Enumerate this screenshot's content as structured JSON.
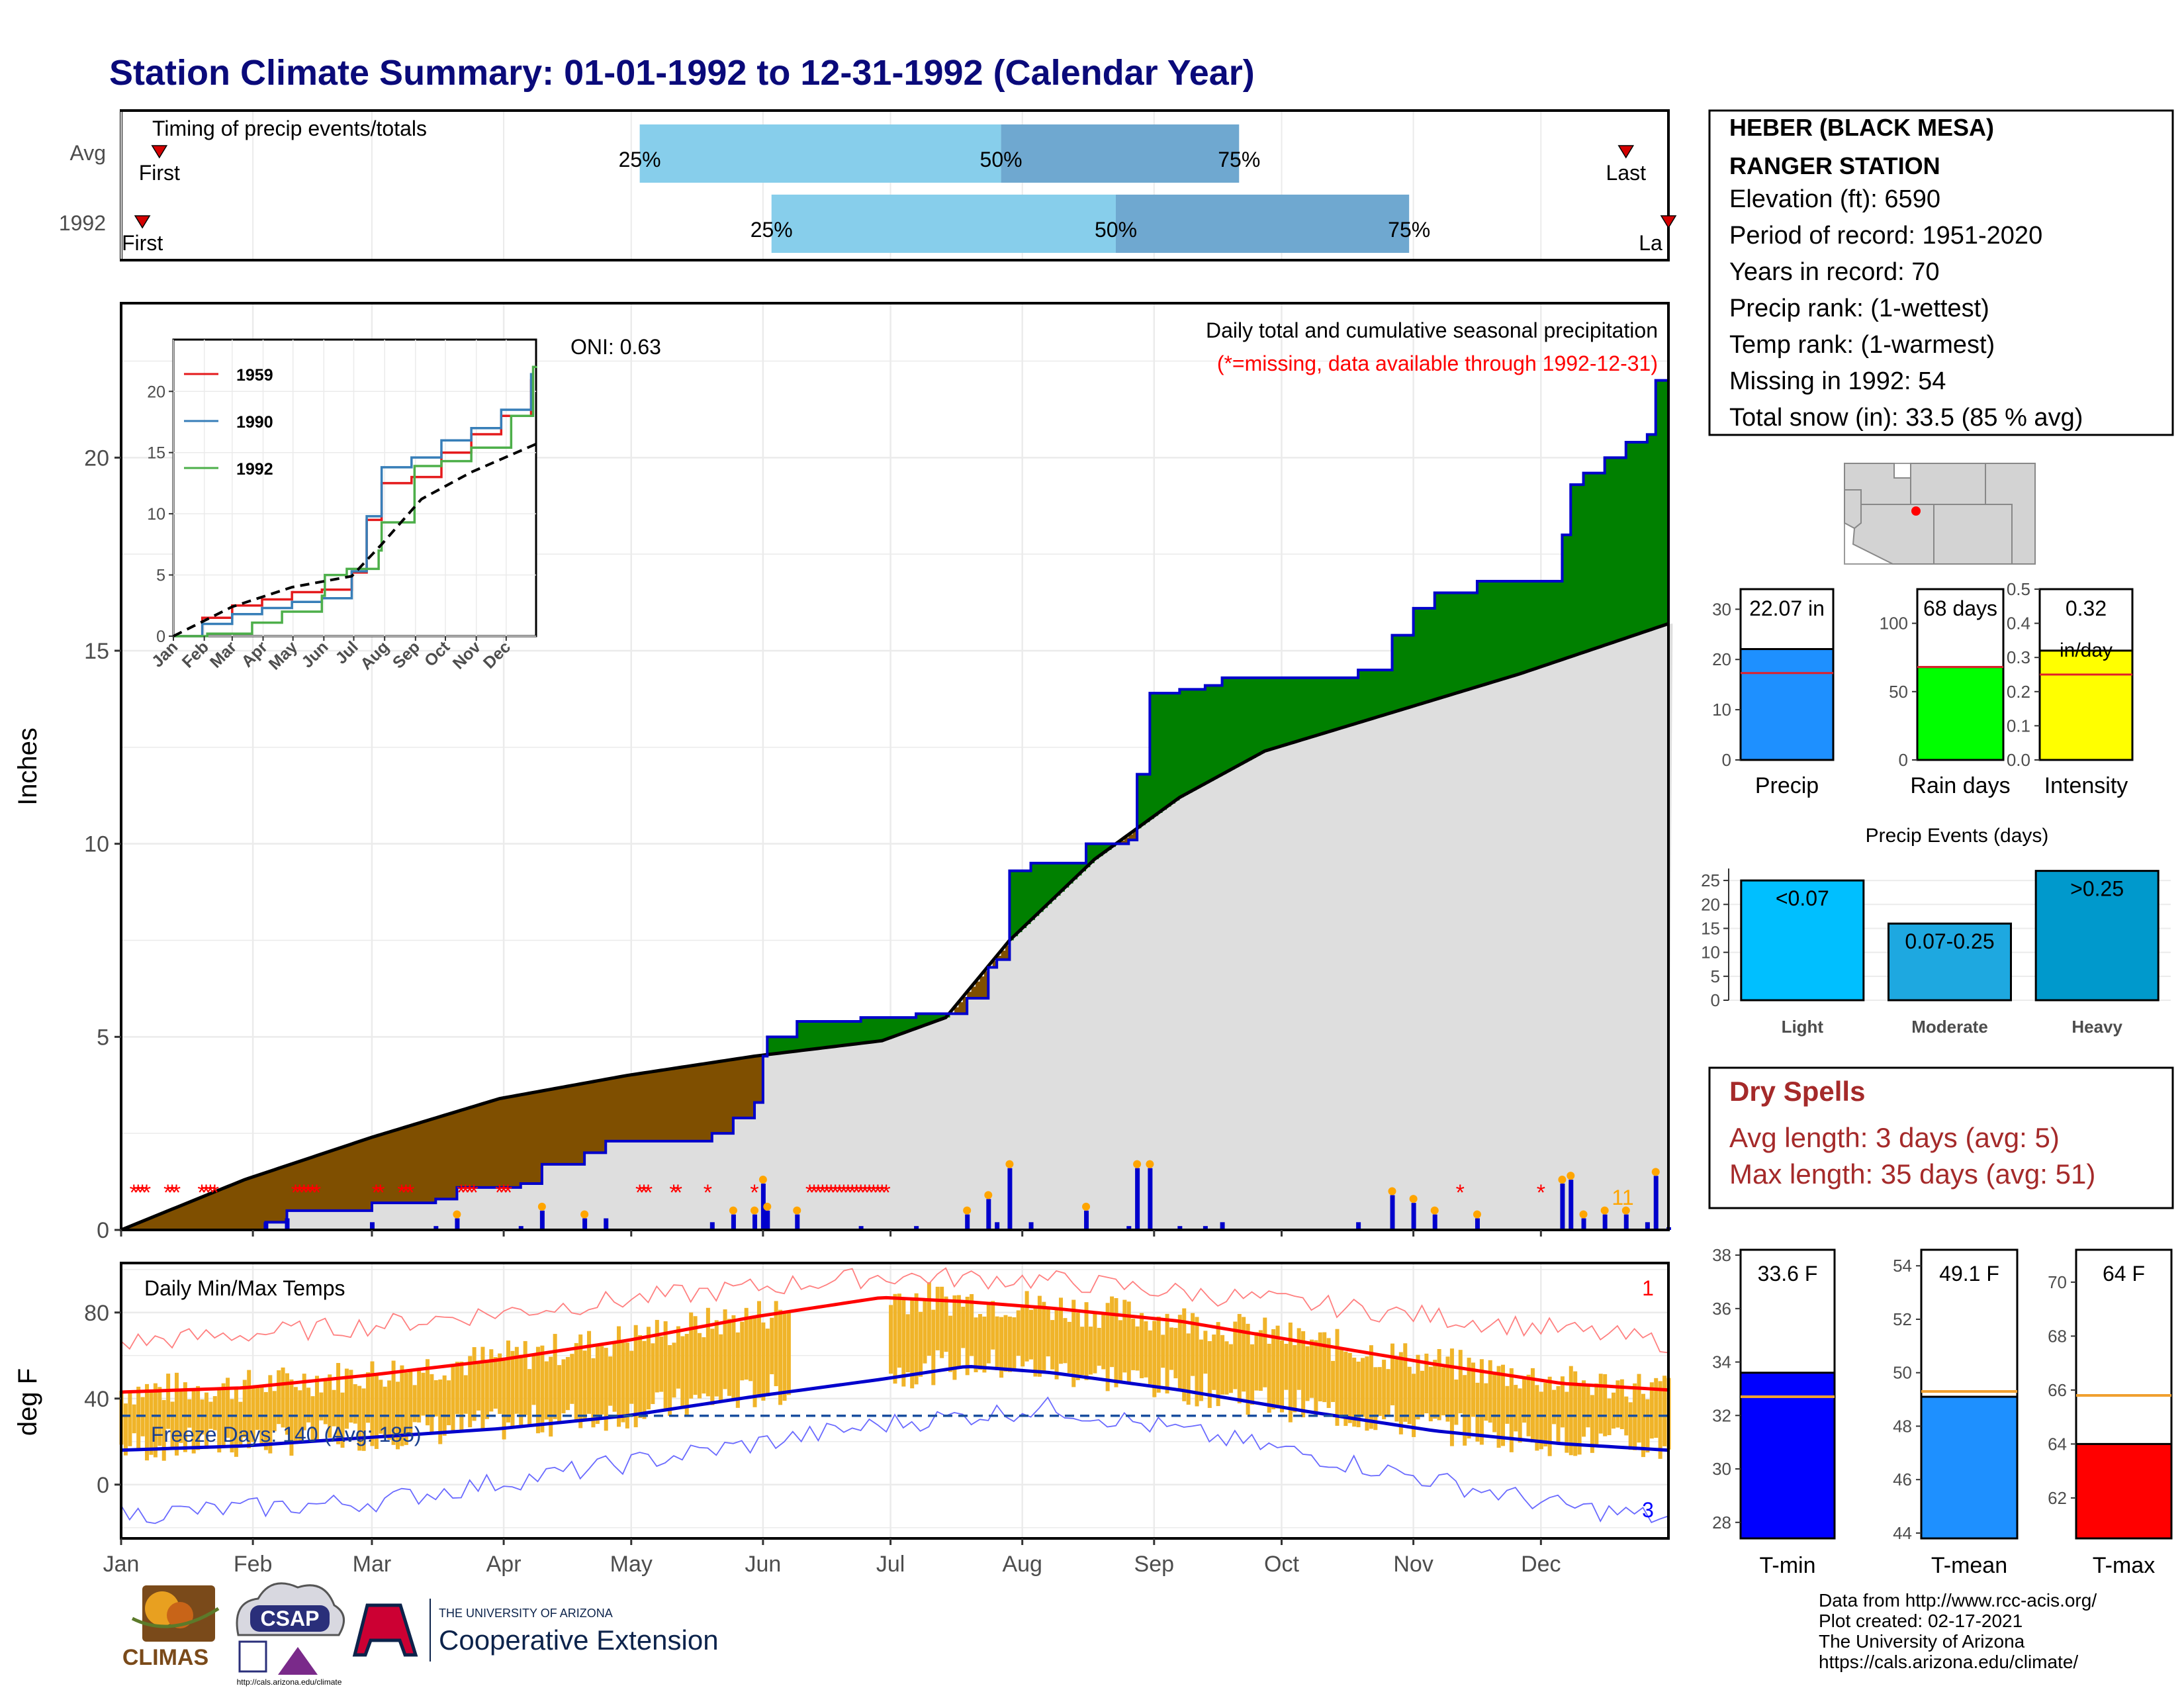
{
  "page": {
    "title": "Station Climate Summary: 01-01-1992 to 12-31-1992 (Calendar Year)",
    "title_color": "#0a0a7a"
  },
  "timing_panel": {
    "label": "Timing of precip events/totals",
    "rows": [
      {
        "label": "Avg",
        "first": "First",
        "last": "Last",
        "p25": "25%",
        "p50": "50%",
        "p75": "75%",
        "first_day": 10,
        "p25_day": 123,
        "p50_day": 208,
        "p75_day": 264,
        "last_day": 355
      },
      {
        "label": "1992",
        "first": "First",
        "last": "La",
        "p25": "25%",
        "p50": "50%",
        "p75": "75%",
        "first_day": 6,
        "p25_day": 154,
        "p50_day": 235,
        "p75_day": 304,
        "last_day": 365
      }
    ],
    "colors": {
      "light": "#87ceeb",
      "dark": "#6fa8d0",
      "marker": "#d40000"
    }
  },
  "precip_panel": {
    "ylabel": "Inches",
    "yticks": [
      "0",
      "5",
      "10",
      "15",
      "20"
    ],
    "oni": "ONI: 0.63",
    "note_title": "Daily total and cumulative seasonal precipitation",
    "note_missing": "(*=missing, data available through 1992-12-31)",
    "count_label": "11",
    "colors": {
      "above": "#008000",
      "below": "#7f4f00",
      "normal": "#dedede",
      "line": "#0000cc",
      "missing": "#ff0000",
      "gold": "#ffa500"
    }
  },
  "inset": {
    "xticks": [
      "Jan",
      "Feb",
      "Mar",
      "Apr",
      "May",
      "Jun",
      "Jul",
      "Aug",
      "Sep",
      "Oct",
      "Nov",
      "Dec"
    ],
    "yticks": [
      "0",
      "5",
      "10",
      "15",
      "20"
    ],
    "legend": [
      {
        "name": "1959",
        "color": "#e41a1c"
      },
      {
        "name": "1990",
        "color": "#377eb8"
      },
      {
        "name": "1992",
        "color": "#4daf4a"
      }
    ]
  },
  "temp_panel": {
    "ylabel": "deg F",
    "title": "Daily Min/Max Temps",
    "yticks": [
      "0",
      "40",
      "80"
    ],
    "freeze": "Freeze Days: 140 (Avg: 185)",
    "count_top": "1",
    "count_bottom": "3",
    "xticks": [
      "Jan",
      "Feb",
      "Mar",
      "Apr",
      "May",
      "Jun",
      "Jul",
      "Aug",
      "Sep",
      "Oct",
      "Nov",
      "Dec"
    ]
  },
  "station_box": {
    "name_line1": "HEBER (BLACK MESA)",
    "name_line2": "RANGER STATION",
    "elevation": "Elevation (ft): 6590",
    "period": "Period of record: 1951-2020",
    "years": "Years in record: 70",
    "precip_rank": "Precip rank:  (1-wettest)",
    "temp_rank": "Temp rank:  (1-warmest)",
    "missing": "Missing in 1992: 54",
    "snow": "Total snow (in): 33.5 (85 % avg)"
  },
  "mini_bars": [
    {
      "label": "Precip",
      "value_label": "22.07 in",
      "value": 22.07,
      "avg": 17.3,
      "ymax": 34,
      "ticks": [
        "0",
        "10",
        "20",
        "30"
      ],
      "color": "#1e90ff"
    },
    {
      "label": "Rain days",
      "value_label": "68 days",
      "value": 68,
      "avg": 68,
      "ymax": 125,
      "ticks": [
        "0",
        "50",
        "100"
      ],
      "color": "#00ff00"
    },
    {
      "label": "Intensity",
      "value_label": "0.32",
      "value_label2": "in/day",
      "value": 0.32,
      "avg": 0.25,
      "ymax": 0.5,
      "ticks": [
        "0.0",
        "0.1",
        "0.2",
        "0.3",
        "0.4",
        "0.5"
      ],
      "color": "#ffff00"
    }
  ],
  "events_chart": {
    "title": "Precip Events (days)",
    "categories": [
      "Light",
      "Moderate",
      "Heavy"
    ],
    "bar_labels": [
      "<0.07",
      "0.07-0.25",
      ">0.25"
    ],
    "values": [
      25,
      16,
      27
    ],
    "yticks": [
      "0",
      "5",
      "10",
      "15",
      "20",
      "25"
    ],
    "colors": [
      "#00bfff",
      "#1ea8e0",
      "#0099cc"
    ]
  },
  "dry_spells": {
    "title": "Dry Spells",
    "avg_length": "Avg length: 3 days (avg: 5)",
    "max_length": "Max length: 35 days (avg: 51)",
    "color": "#a52a2a"
  },
  "temp_bars": [
    {
      "label": "T-min",
      "value_label": "33.6 F",
      "value": 33.6,
      "avg": 32.7,
      "ymin": 27.4,
      "ymax": 38.2,
      "ticks": [
        "28",
        "30",
        "32",
        "34",
        "36",
        "38"
      ],
      "color": "#0000ff"
    },
    {
      "label": "T-mean",
      "value_label": "49.1 F",
      "value": 49.1,
      "avg": 49.3,
      "ymin": 43.8,
      "ymax": 54.6,
      "ticks": [
        "44",
        "46",
        "48",
        "50",
        "52",
        "54"
      ],
      "color": "#1e90ff"
    },
    {
      "label": "T-max",
      "value_label": "64 F",
      "value": 64.0,
      "avg": 65.8,
      "ymin": 60.5,
      "ymax": 71.2,
      "ticks": [
        "62",
        "64",
        "66",
        "68",
        "70"
      ],
      "color": "#ff0000"
    }
  ],
  "credits": {
    "line1": "Data from http://www.rcc-acis.org/",
    "line2": "Plot created: 02-17-2021",
    "line3": "The University of Arizona",
    "line4": "https://cals.arizona.edu/climate/"
  },
  "logos": {
    "climas": "CLIMAS",
    "csap": "CSAP",
    "csap_url": "http://cals.arizona.edu/climate",
    "ua_small": "THE UNIVERSITY OF ARIZONA",
    "ua_big": "Cooperative Extension"
  },
  "chart_data": [
    {
      "type": "area",
      "title": "Daily total and cumulative seasonal precipitation",
      "ylabel": "Inches",
      "ylim": [
        0,
        24
      ],
      "x_unit": "day of year",
      "series": [
        {
          "name": "",
          "kind": "cumulative 1992",
          "x": [
            1,
            35,
            40,
            60,
            75,
            80,
            95,
            100,
            110,
            115,
            140,
            145,
            150,
            152,
            153,
            160,
            175,
            188,
            200,
            205,
            207,
            210,
            215,
            228,
            238,
            240,
            243,
            250,
            256,
            260,
            268,
            283,
            292,
            300,
            305,
            310,
            320,
            330,
            340,
            342,
            345,
            350,
            355,
            360,
            362,
            365
          ],
          "values": [
            0,
            0.2,
            0.5,
            0.7,
            0.8,
            1.1,
            1.2,
            1.7,
            2.0,
            2.3,
            2.5,
            2.9,
            3.3,
            4.5,
            5.0,
            5.4,
            5.5,
            5.6,
            6.0,
            6.8,
            7.0,
            9.3,
            9.5,
            10.0,
            10.1,
            11.8,
            13.9,
            14.0,
            14.1,
            14.3,
            14.3,
            14.3,
            14.5,
            15.4,
            16.1,
            16.5,
            16.8,
            16.8,
            18.0,
            19.3,
            19.6,
            20.0,
            20.4,
            20.6,
            22.0,
            22.07
          ]
        },
        {
          "name": "",
          "kind": "average cumulative",
          "x": [
            1,
            30,
            60,
            90,
            120,
            150,
            180,
            195,
            210,
            230,
            250,
            270,
            300,
            330,
            365
          ],
          "values": [
            0,
            1.3,
            2.4,
            3.4,
            4.0,
            4.5,
            4.9,
            5.5,
            7.5,
            9.6,
            11.2,
            12.4,
            13.4,
            14.4,
            15.7
          ]
        }
      ],
      "missing_days": [
        4,
        5,
        6,
        7,
        12,
        13,
        14,
        20,
        21,
        22,
        23,
        42,
        43,
        44,
        45,
        46,
        47,
        61,
        62,
        67,
        68,
        69,
        81,
        82,
        83,
        84,
        90,
        91,
        92,
        123,
        124,
        125,
        131,
        132,
        139,
        150,
        163,
        164,
        165,
        166,
        167,
        168,
        169,
        170,
        171,
        172,
        173,
        174,
        175,
        176,
        177,
        178,
        179,
        180,
        181,
        316,
        335
      ]
    },
    {
      "type": "line",
      "title": "",
      "ylim": [
        0,
        24
      ],
      "categories": [
        "Jan",
        "Feb",
        "Mar",
        "Apr",
        "May",
        "Jun",
        "Jul",
        "Aug",
        "Sep",
        "Oct",
        "Nov",
        "Dec"
      ],
      "series": [
        {
          "name": "1959",
          "x": [
            1,
            30,
            60,
            90,
            120,
            150,
            180,
            195,
            210,
            240,
            270,
            300,
            330,
            360
          ],
          "values": [
            0,
            1.5,
            2.5,
            3.0,
            3.6,
            3.8,
            5.2,
            9.5,
            12.5,
            13.0,
            15.0,
            16.5,
            18.0,
            21.0
          ]
        },
        {
          "name": "1990",
          "x": [
            1,
            30,
            60,
            90,
            120,
            150,
            180,
            195,
            210,
            240,
            270,
            300,
            330,
            360
          ],
          "values": [
            0,
            1.0,
            1.8,
            2.3,
            2.8,
            3.1,
            5.3,
            9.8,
            13.8,
            14.6,
            16.0,
            17.0,
            18.5,
            21.5
          ]
        },
        {
          "name": "1992",
          "x": [
            1,
            35,
            80,
            110,
            150,
            153,
            175,
            207,
            210,
            243,
            270,
            300,
            340,
            362,
            365
          ],
          "values": [
            0,
            0.2,
            1.1,
            2.0,
            3.3,
            5.0,
            5.5,
            7.0,
            9.3,
            13.9,
            14.3,
            15.4,
            18.0,
            22.0,
            22.07
          ]
        },
        {
          "name": "",
          "kind": "average",
          "x": [
            1,
            60,
            120,
            180,
            210,
            250,
            300,
            365
          ],
          "values": [
            0,
            2.4,
            4.0,
            4.9,
            7.5,
            11.2,
            13.4,
            15.7
          ]
        }
      ]
    },
    {
      "type": "line",
      "title": "Daily Min/Max Temps",
      "ylabel": "deg F",
      "ylim": [
        -25,
        103
      ],
      "series": [
        {
          "name": "",
          "kind": "avg max",
          "x": [
            1,
            30,
            60,
            90,
            120,
            150,
            180,
            200,
            220,
            250,
            280,
            310,
            340,
            365
          ],
          "values": [
            43,
            45,
            51,
            58,
            67,
            78,
            87,
            85,
            82,
            76,
            66,
            56,
            47,
            44
          ]
        },
        {
          "name": "",
          "kind": "avg min",
          "x": [
            1,
            30,
            60,
            90,
            120,
            150,
            180,
            200,
            220,
            250,
            280,
            310,
            340,
            365
          ],
          "values": [
            16,
            18,
            22,
            26,
            32,
            41,
            49,
            55,
            52,
            44,
            34,
            25,
            19,
            16
          ]
        },
        {
          "name": "",
          "kind": "record max",
          "x": [
            1,
            60,
            120,
            180,
            220,
            280,
            340,
            365
          ],
          "values": [
            66,
            74,
            86,
            97,
            95,
            84,
            72,
            66
          ]
        },
        {
          "name": "",
          "kind": "record min",
          "x": [
            1,
            60,
            120,
            180,
            220,
            280,
            340,
            365
          ],
          "values": [
            -14,
            -8,
            10,
            28,
            36,
            14,
            -10,
            -16
          ]
        }
      ],
      "freeze_line": 32
    },
    {
      "type": "bar",
      "title": "Precip Events (days)",
      "categories": [
        "Light",
        "Moderate",
        "Heavy"
      ],
      "values": [
        25,
        16,
        27
      ]
    }
  ]
}
